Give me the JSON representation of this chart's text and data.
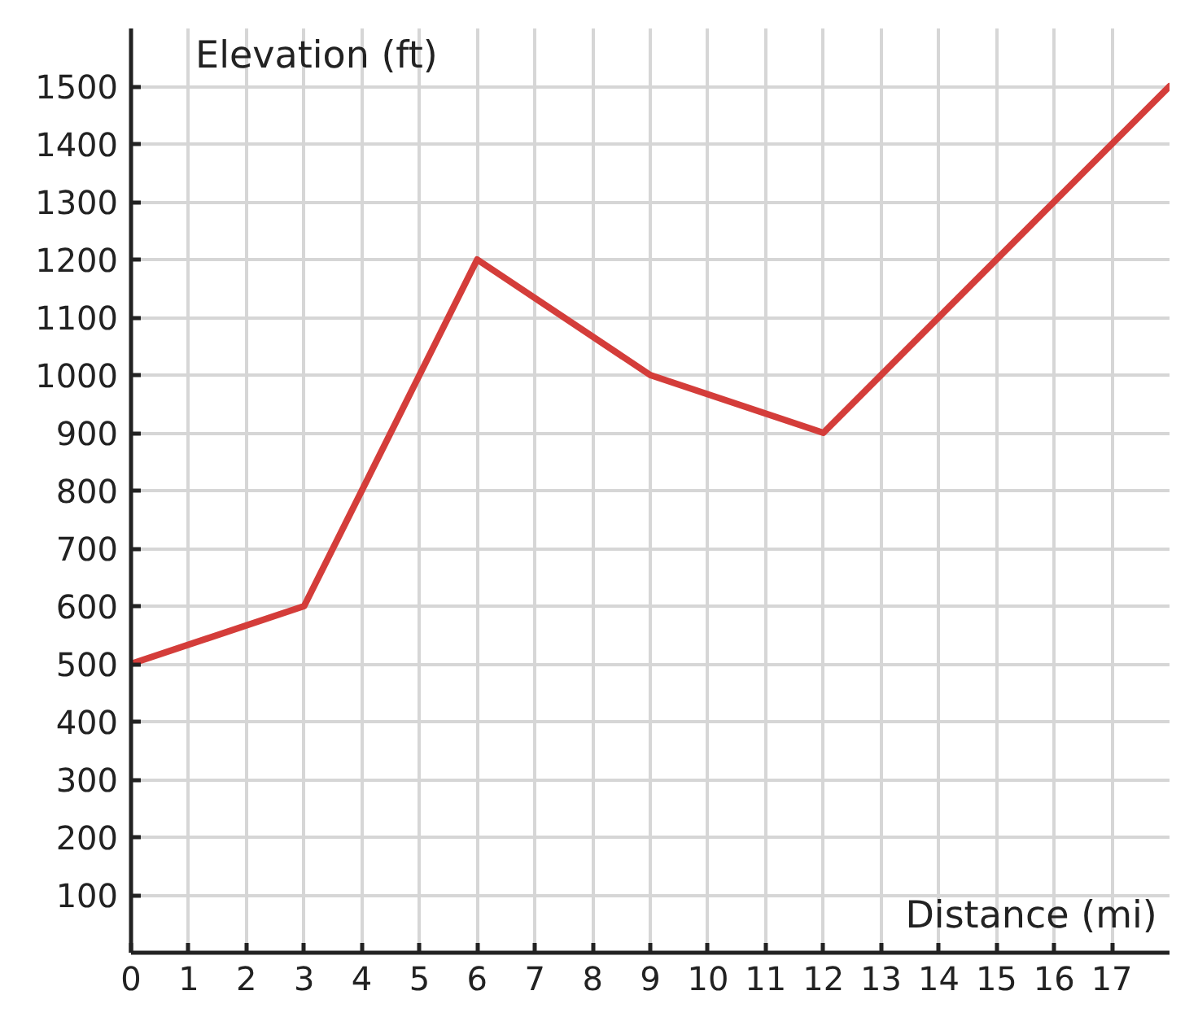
{
  "chart_data": {
    "type": "line",
    "xlabel": "Distance (mi)",
    "ylabel": "Elevation (ft)",
    "x": [
      0,
      3,
      6,
      9,
      12,
      18
    ],
    "series": [
      {
        "color": "#d43d3a",
        "values": [
          500,
          600,
          1200,
          1000,
          900,
          1500
        ]
      }
    ],
    "xlim": [
      0,
      18
    ],
    "ylim": [
      0,
      1600
    ],
    "xticks": [
      0,
      1,
      2,
      3,
      4,
      5,
      6,
      7,
      8,
      9,
      10,
      11,
      12,
      13,
      14,
      15,
      16,
      17
    ],
    "yticks": [
      100,
      200,
      300,
      400,
      500,
      600,
      700,
      800,
      900,
      1000,
      1100,
      1200,
      1300,
      1400,
      1500
    ],
    "grid": true
  }
}
